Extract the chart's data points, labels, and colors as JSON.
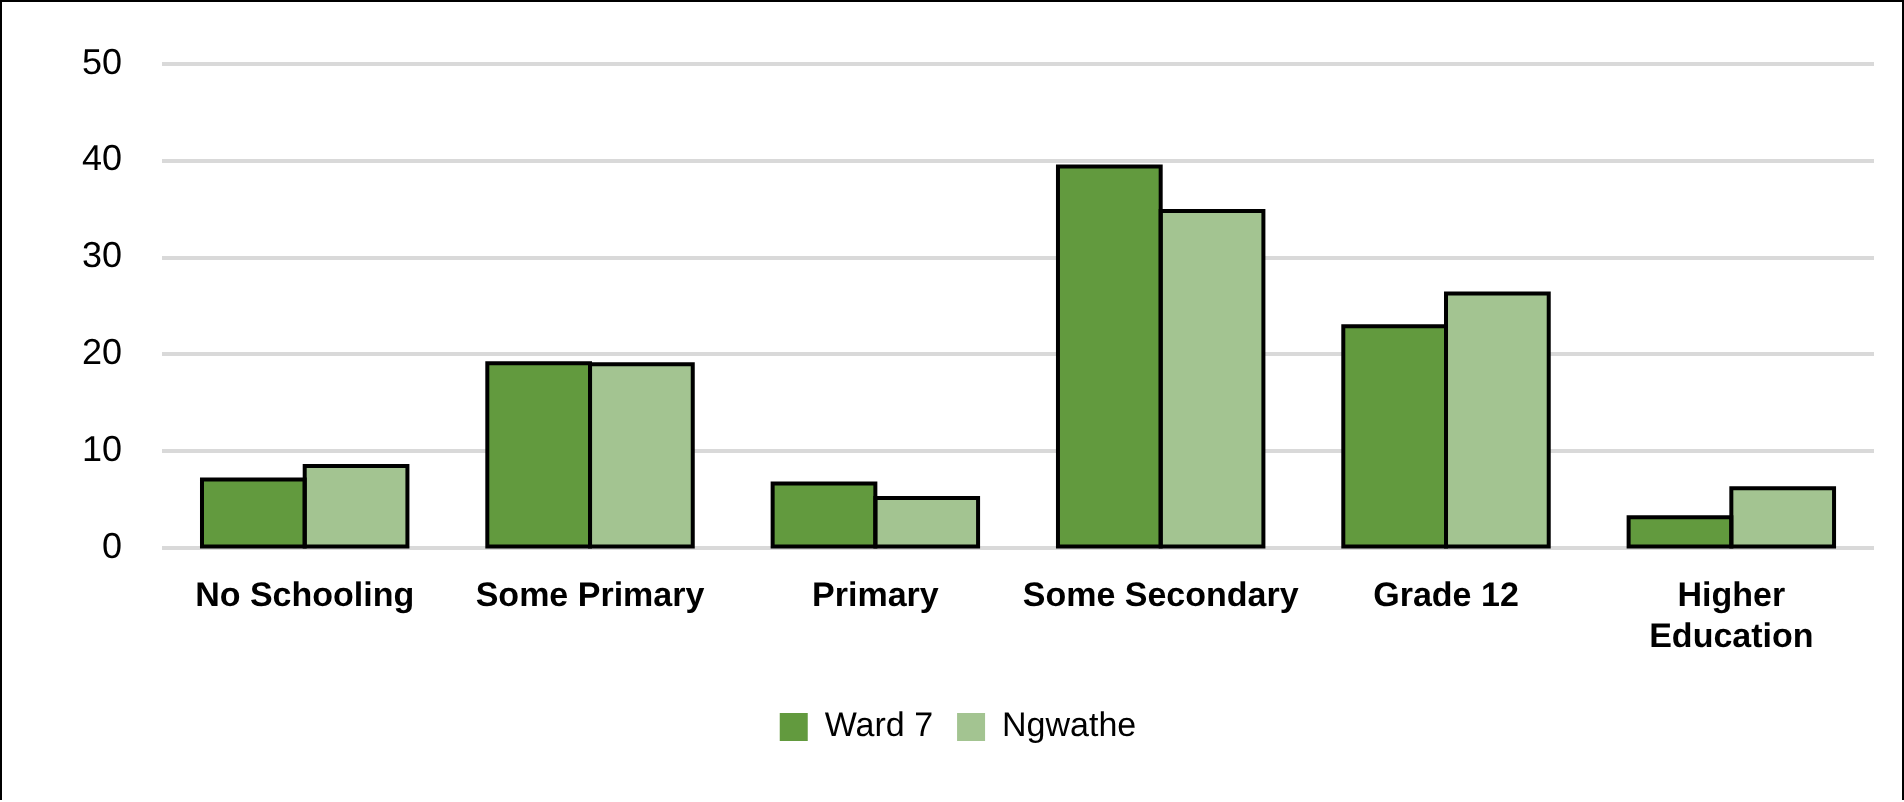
{
  "chart_data": {
    "type": "bar",
    "categories": [
      "No Schooling",
      "Some Primary",
      "Primary",
      "Some Secondary",
      "Grade 12",
      "Higher Education"
    ],
    "series": [
      {
        "name": "Ward 7",
        "color": "#629a3e",
        "values": [
          7.1,
          19.1,
          6.7,
          39.4,
          22.9,
          3.2
        ]
      },
      {
        "name": "Ngwathe",
        "color": "#a3c491",
        "values": [
          8.5,
          19.0,
          5.2,
          34.8,
          26.3,
          6.2
        ]
      }
    ],
    "ylim": [
      0,
      50
    ],
    "yticks": [
      0,
      10,
      20,
      30,
      40,
      50
    ],
    "grid": "y",
    "legend": "bottom"
  }
}
